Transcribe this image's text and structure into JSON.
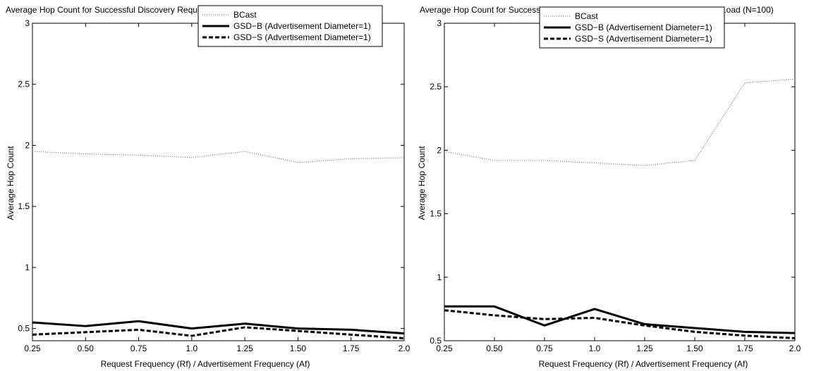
{
  "chart_data": [
    {
      "type": "line",
      "title": "Average Hop Count for Successful Discovery Requests with increasing Request Load (N=50)",
      "xlabel": "Request Frequency (Rf) / Advertisement Frequency (Af)",
      "ylabel": "Average Hop Count",
      "xlim": [
        0.25,
        2.0
      ],
      "ylim": [
        0.4,
        3.0
      ],
      "x_ticks": [
        "0.25",
        "0.50",
        "0.75",
        "1.0",
        "1.25",
        "1.50",
        "1.75",
        "2.0"
      ],
      "y_ticks": [
        "0.5",
        "1",
        "1.5",
        "2",
        "2.5",
        "3"
      ],
      "y_tick_values": [
        0.5,
        1.0,
        1.5,
        2.0,
        2.5,
        3.0
      ],
      "x": [
        0.25,
        0.5,
        0.75,
        1.0,
        1.25,
        1.5,
        1.75,
        2.0
      ],
      "legend_position": "top-right",
      "grid": false,
      "series": [
        {
          "name": "BCast",
          "style": "dotted",
          "color": "#888888",
          "values": [
            1.95,
            1.93,
            1.92,
            1.9,
            1.95,
            1.86,
            1.89,
            1.9
          ]
        },
        {
          "name": "GSD−B (Advertisement Diameter=1)",
          "style": "solid",
          "color": "#000000",
          "values": [
            0.55,
            0.52,
            0.56,
            0.5,
            0.54,
            0.5,
            0.49,
            0.46
          ]
        },
        {
          "name": "GSD−S (Advertisement Diameter=1)",
          "style": "dashed",
          "color": "#000000",
          "values": [
            0.45,
            0.47,
            0.49,
            0.44,
            0.51,
            0.48,
            0.45,
            0.42
          ]
        }
      ]
    },
    {
      "type": "line",
      "title": "Average Hop Count for Successful Discovery Requests with increasing Request Load (N=100)",
      "xlabel": "Request Frequency (Rf) / Advertisement Frequency (Af)",
      "ylabel": "Average Hop Count",
      "xlim": [
        0.25,
        2.0
      ],
      "ylim": [
        0.5,
        3.0
      ],
      "x_ticks": [
        "0.25",
        "0.50",
        "0.75",
        "1.0",
        "1.25",
        "1.50",
        "1.75",
        "2.0"
      ],
      "y_ticks": [
        "0.5",
        "1",
        "1.5",
        "2",
        "2.5",
        "3"
      ],
      "y_tick_values": [
        0.5,
        1.0,
        1.5,
        2.0,
        2.5,
        3.0
      ],
      "x": [
        0.25,
        0.5,
        0.75,
        1.0,
        1.25,
        1.5,
        1.75,
        2.0
      ],
      "legend_position": "top-center",
      "grid": false,
      "series": [
        {
          "name": "BCast",
          "style": "dotted",
          "color": "#888888",
          "values": [
            1.99,
            1.92,
            1.92,
            1.9,
            1.88,
            1.92,
            2.53,
            2.56
          ]
        },
        {
          "name": "GSD−B (Advertisement Diameter=1)",
          "style": "solid",
          "color": "#000000",
          "values": [
            0.77,
            0.77,
            0.62,
            0.75,
            0.63,
            0.6,
            0.57,
            0.56
          ]
        },
        {
          "name": "GSD−S (Advertisement Diameter=1)",
          "style": "dashed",
          "color": "#000000",
          "values": [
            0.74,
            0.7,
            0.67,
            0.68,
            0.62,
            0.57,
            0.54,
            0.52
          ]
        }
      ]
    }
  ]
}
